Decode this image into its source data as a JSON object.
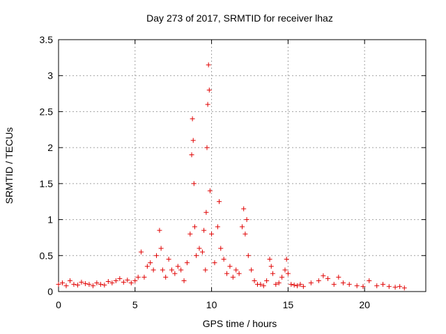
{
  "chart_data": {
    "type": "scatter",
    "title": "Day 273 of 2017, SRMTID for receiver lhaz",
    "xlabel": "GPS time / hours",
    "ylabel": "SRMTID / TECUs",
    "xlim": [
      0,
      24
    ],
    "ylim": [
      0,
      3.5
    ],
    "xticks": [
      0,
      5,
      10,
      15,
      20
    ],
    "yticks": [
      0,
      0.5,
      1,
      1.5,
      2,
      2.5,
      3,
      3.5
    ],
    "xtick_labels": [
      "0",
      "5",
      "10",
      "15",
      "20"
    ],
    "ytick_labels": [
      "0",
      "0.5",
      "1",
      "1.5",
      "2",
      "2.5",
      "3",
      "3.5"
    ],
    "grid": true,
    "marker": "+",
    "color": "#e00000",
    "series": [
      {
        "name": "SRMTID",
        "x": [
          0.0,
          0.25,
          0.5,
          0.75,
          1.0,
          1.25,
          1.5,
          1.75,
          2.0,
          2.25,
          2.5,
          2.75,
          3.0,
          3.25,
          3.5,
          3.75,
          4.0,
          4.25,
          4.5,
          4.75,
          5.0,
          5.2,
          5.4,
          5.6,
          5.8,
          6.0,
          6.2,
          6.4,
          6.6,
          6.7,
          6.8,
          7.0,
          7.2,
          7.4,
          7.6,
          7.8,
          8.0,
          8.2,
          8.4,
          8.6,
          8.7,
          8.75,
          8.8,
          8.85,
          8.9,
          9.0,
          9.2,
          9.4,
          9.5,
          9.6,
          9.65,
          9.7,
          9.75,
          9.8,
          9.85,
          9.9,
          10.0,
          10.2,
          10.4,
          10.5,
          10.6,
          10.8,
          11.0,
          11.2,
          11.4,
          11.6,
          11.8,
          12.0,
          12.1,
          12.2,
          12.3,
          12.4,
          12.6,
          12.8,
          13.0,
          13.2,
          13.4,
          13.6,
          13.8,
          13.9,
          14.0,
          14.2,
          14.4,
          14.6,
          14.8,
          14.9,
          15.0,
          15.2,
          15.4,
          15.6,
          15.8,
          16.0,
          16.5,
          17.0,
          17.3,
          17.6,
          18.0,
          18.3,
          18.6,
          19.0,
          19.5,
          19.9,
          20.3,
          20.8,
          21.2,
          21.6,
          22.0,
          22.3,
          22.6
        ],
        "y": [
          0.1,
          0.12,
          0.08,
          0.15,
          0.1,
          0.09,
          0.13,
          0.11,
          0.1,
          0.08,
          0.12,
          0.1,
          0.09,
          0.14,
          0.12,
          0.15,
          0.18,
          0.13,
          0.16,
          0.12,
          0.15,
          0.2,
          0.55,
          0.2,
          0.35,
          0.4,
          0.3,
          0.5,
          0.85,
          0.6,
          0.3,
          0.2,
          0.45,
          0.3,
          0.25,
          0.35,
          0.3,
          0.15,
          0.4,
          0.8,
          1.9,
          2.4,
          2.1,
          1.5,
          0.9,
          0.5,
          0.6,
          0.55,
          0.85,
          0.3,
          1.1,
          2.0,
          2.6,
          3.15,
          2.8,
          1.4,
          0.8,
          0.4,
          0.9,
          1.25,
          0.6,
          0.45,
          0.25,
          0.35,
          0.2,
          0.3,
          0.25,
          0.9,
          1.15,
          0.8,
          1.0,
          0.5,
          0.3,
          0.15,
          0.1,
          0.1,
          0.08,
          0.15,
          0.45,
          0.35,
          0.25,
          0.1,
          0.12,
          0.2,
          0.3,
          0.45,
          0.25,
          0.1,
          0.09,
          0.08,
          0.1,
          0.07,
          0.12,
          0.15,
          0.22,
          0.18,
          0.1,
          0.2,
          0.12,
          0.1,
          0.08,
          0.07,
          0.15,
          0.08,
          0.1,
          0.07,
          0.06,
          0.07,
          0.05
        ]
      }
    ]
  }
}
